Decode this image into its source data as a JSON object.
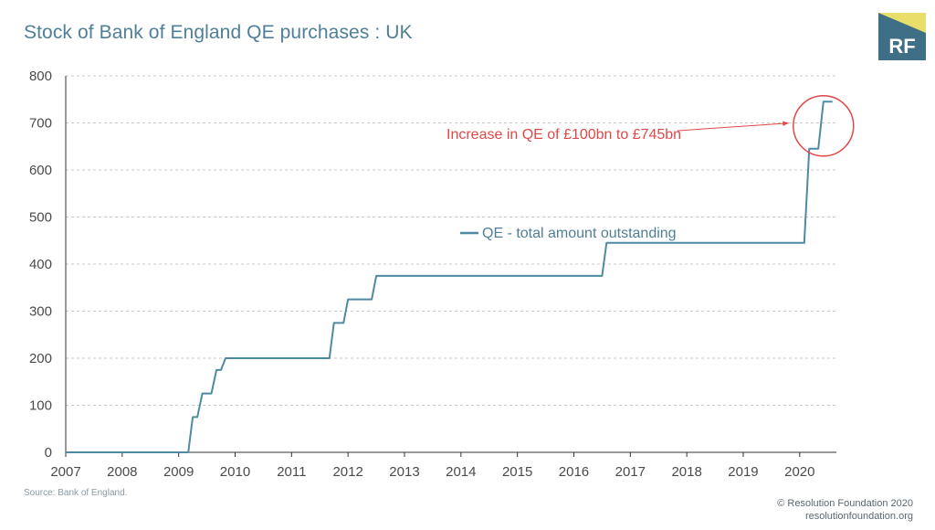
{
  "title": "Stock of Bank of England QE purchases : UK",
  "logo": {
    "text": "RF",
    "bg_color": "#3f6f86",
    "accent_color": "#e8df6a"
  },
  "source": "Source: Bank of England.",
  "credits": {
    "line1": "© Resolution Foundation 2020",
    "line2": "resolutionfoundation.org"
  },
  "colors": {
    "line": "#4f8aa3",
    "annotation": "#e04848",
    "grid": "#c8c8c8",
    "axis": "#333333"
  },
  "chart_data": {
    "type": "line",
    "title": "Stock of Bank of England QE purchases : UK",
    "xlabel": "",
    "ylabel": "",
    "xlim": [
      2007,
      2020.65
    ],
    "ylim": [
      0,
      800
    ],
    "yticks": [
      0,
      100,
      200,
      300,
      400,
      500,
      600,
      700,
      800
    ],
    "xticks": [
      2007,
      2008,
      2009,
      2010,
      2011,
      2012,
      2013,
      2014,
      2015,
      2016,
      2017,
      2018,
      2019,
      2020
    ],
    "grid": "horizontal dashed",
    "legend": {
      "label": "QE - total amount outstanding",
      "placement": "center-right"
    },
    "annotation": {
      "text": "Increase in QE of £100bn to £745bn",
      "target_x": 2020.42,
      "target_y": 715
    },
    "series": [
      {
        "name": "QE - total amount outstanding",
        "x": [
          2007.0,
          2009.17,
          2009.25,
          2009.33,
          2009.42,
          2009.58,
          2009.67,
          2009.75,
          2009.83,
          2011.67,
          2011.75,
          2011.92,
          2012.0,
          2012.17,
          2012.25,
          2012.42,
          2012.5,
          2016.5,
          2016.58,
          2020.08,
          2020.17,
          2020.33,
          2020.42,
          2020.58
        ],
        "y": [
          0,
          0,
          75,
          75,
          125,
          125,
          175,
          175,
          200,
          200,
          275,
          275,
          325,
          325,
          325,
          325,
          375,
          375,
          445,
          445,
          645,
          645,
          745,
          745
        ]
      }
    ]
  }
}
